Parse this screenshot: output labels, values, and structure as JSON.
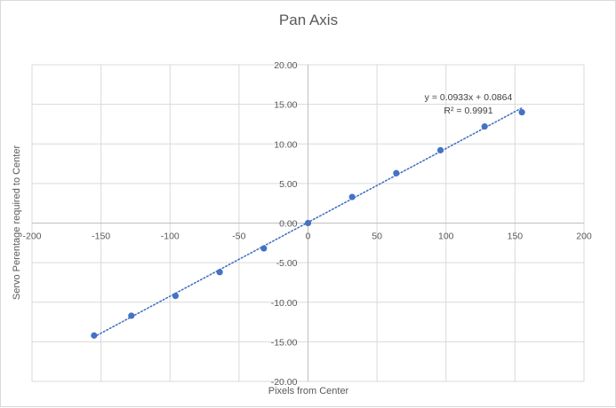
{
  "chart_data": {
    "type": "scatter",
    "title": "Pan Axis",
    "xlabel": "Pixels from Center",
    "ylabel": "Servo Perentage  required to Center",
    "xlim": [
      -200,
      200
    ],
    "ylim": [
      -20,
      20
    ],
    "x_ticks": [
      -200,
      -150,
      -100,
      -50,
      0,
      50,
      100,
      150,
      200
    ],
    "y_ticks": [
      -20,
      -15,
      -10,
      -5,
      0,
      5,
      10,
      15,
      20
    ],
    "x_tick_labels": [
      "-200",
      "-150",
      "-100",
      "-50",
      "0",
      "50",
      "100",
      "150",
      "200"
    ],
    "y_tick_labels": [
      "-20.00",
      "-15.00",
      "-10.00",
      "-5.00",
      "0.00",
      "5.00",
      "10.00",
      "15.00",
      "20.00"
    ],
    "grid": true,
    "series": [
      {
        "color": "#4472c4",
        "points": [
          {
            "x": -155,
            "y": -14.2
          },
          {
            "x": -128,
            "y": -11.7
          },
          {
            "x": -96,
            "y": -9.2
          },
          {
            "x": -64,
            "y": -6.2
          },
          {
            "x": -32,
            "y": -3.2
          },
          {
            "x": 0,
            "y": 0.0
          },
          {
            "x": 32,
            "y": 3.3
          },
          {
            "x": 64,
            "y": 6.3
          },
          {
            "x": 96,
            "y": 9.2
          },
          {
            "x": 128,
            "y": 12.2
          },
          {
            "x": 155,
            "y": 14.0
          }
        ]
      }
    ],
    "trendline": {
      "type": "linear",
      "slope": 0.0933,
      "intercept": 0.0864,
      "x_range": [
        -155,
        155
      ],
      "style": "dotted",
      "color": "#4472c4",
      "equation_text": "y = 0.0933x + 0.0864",
      "r2_text": "R² = 0.9991"
    }
  }
}
